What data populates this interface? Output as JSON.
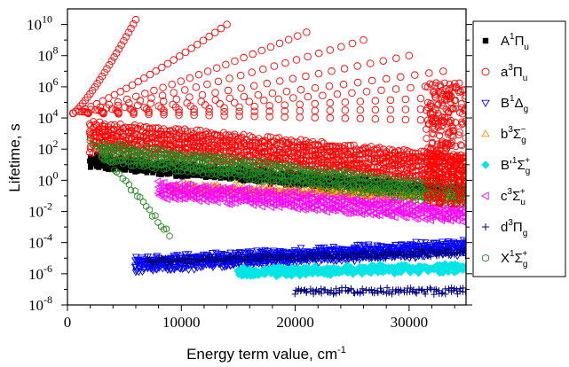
{
  "chart_data": {
    "type": "scatter",
    "xlabel": "Energy term value, cm",
    "xlabel_sup": "-1",
    "ylabel": "Lifetime, s",
    "xlim": [
      0,
      35000
    ],
    "ylim_log10": [
      -8,
      11
    ],
    "y_scale": "log",
    "x_ticks": [
      {
        "value": 0,
        "label": "0"
      },
      {
        "value": 10000,
        "label": "10000"
      },
      {
        "value": 20000,
        "label": "20000"
      },
      {
        "value": 30000,
        "label": "30000"
      }
    ],
    "y_ticks": [
      {
        "exp": 10,
        "base": "10",
        "sup": "10"
      },
      {
        "exp": 8,
        "base": "10",
        "sup": "8"
      },
      {
        "exp": 6,
        "base": "10",
        "sup": "6"
      },
      {
        "exp": 4,
        "base": "10",
        "sup": "4"
      },
      {
        "exp": 2,
        "base": "10",
        "sup": "2"
      },
      {
        "exp": 0,
        "base": "10",
        "sup": "0"
      },
      {
        "exp": -2,
        "base": "10",
        "sup": "-2"
      },
      {
        "exp": -4,
        "base": "10",
        "sup": "-4"
      },
      {
        "exp": -6,
        "base": "10",
        "sup": "-6"
      },
      {
        "exp": -8,
        "base": "10",
        "sup": "-8"
      }
    ],
    "legend_position": "right",
    "series": [
      {
        "key": "A1Pu",
        "label": "A",
        "sup": "1",
        "greek": "Π",
        "sub": "u",
        "marker": "square",
        "color": "#000000",
        "bands": [
          {
            "x0": 2000,
            "x1": 35000,
            "y0": 1.2,
            "y1": -0.9,
            "n": 6,
            "dy": 0.12
          }
        ]
      },
      {
        "key": "a3Pu",
        "label": "a",
        "sup": "3",
        "greek": "Π",
        "sub": "u",
        "marker": "circle",
        "color": "#ff0000",
        "bands": [
          {
            "x0": 2000,
            "x1": 35000,
            "y0": 2.8,
            "y1": 0.6,
            "n": 9,
            "dy": 0.22
          }
        ],
        "fans": [
          {
            "x0": 500,
            "y0": 4.3,
            "x1": 6000,
            "y1": 10.3
          },
          {
            "x0": 500,
            "y0": 4.3,
            "x1": 14000,
            "y1": 10.0
          },
          {
            "x0": 500,
            "y0": 4.3,
            "x1": 21000,
            "y1": 9.5
          },
          {
            "x0": 500,
            "y0": 4.3,
            "x1": 26000,
            "y1": 9.0
          },
          {
            "x0": 500,
            "y0": 4.3,
            "x1": 30000,
            "y1": 8.0
          },
          {
            "x0": 500,
            "y0": 4.3,
            "x1": 33000,
            "y1": 7.0
          },
          {
            "x0": 500,
            "y0": 4.3,
            "x1": 34000,
            "y1": 6.2
          },
          {
            "x0": 500,
            "y0": 4.3,
            "x1": 35000,
            "y1": 5.4
          },
          {
            "x0": 500,
            "y0": 4.3,
            "x1": 35000,
            "y1": 4.6
          },
          {
            "x0": 500,
            "y0": 4.3,
            "x1": 35000,
            "y1": 3.8
          }
        ]
      },
      {
        "key": "B1Dg",
        "label": "B",
        "sup": "1",
        "greek": "Δ",
        "sub": "g",
        "marker": "triangle-down",
        "color": "#0000ff",
        "bands": [
          {
            "x0": 6000,
            "x1": 35000,
            "y0": -5.4,
            "y1": -4.3,
            "n": 7,
            "dy": 0.12
          }
        ]
      },
      {
        "key": "b3Sg",
        "label": "b",
        "sup": "3",
        "greek": "Σ",
        "sub": "g",
        "subsup": "−",
        "marker": "triangle-up",
        "color": "#ff8c00",
        "bands": [
          {
            "x0": 9000,
            "x1": 35000,
            "y0": -0.5,
            "y1": -1.1,
            "n": 3,
            "dy": 0.18
          }
        ]
      },
      {
        "key": "Bp1Sg",
        "label": "B'",
        "sup": "1",
        "greek": "Σ",
        "sub": "g",
        "subsup": "+",
        "marker": "diamond",
        "color": "#00e5e5",
        "bands": [
          {
            "x0": 15000,
            "x1": 35000,
            "y0": -5.9,
            "y1": -5.6,
            "n": 4,
            "dy": 0.1
          }
        ]
      },
      {
        "key": "c3Su",
        "label": "c",
        "sup": "3",
        "greek": "Σ",
        "sub": "u",
        "subsup": "+",
        "marker": "triangle-left",
        "color": "#ff00ff",
        "bands": [
          {
            "x0": 8000,
            "x1": 35000,
            "y0": -0.6,
            "y1": -2.2,
            "n": 5,
            "dy": 0.2
          }
        ]
      },
      {
        "key": "d3Pg",
        "label": "d",
        "sup": "3",
        "greek": "Π",
        "sub": "g",
        "marker": "plus",
        "color": "#000080",
        "bands": [
          {
            "x0": 20000,
            "x1": 35000,
            "y0": -7.1,
            "y1": -7.1,
            "n": 2,
            "dy": 0.1
          },
          {
            "x0": 7000,
            "x1": 35000,
            "y0": -5.2,
            "y1": -4.6,
            "n": 3,
            "dy": 0.1
          }
        ]
      },
      {
        "key": "X1Sg",
        "label": "X",
        "sup": "1",
        "greek": "Σ",
        "sub": "g",
        "subsup": "+",
        "marker": "hexagon",
        "color": "#228b22",
        "bands": [
          {
            "x0": 3000,
            "x1": 35000,
            "y0": 1.8,
            "y1": -1.0,
            "n": 5,
            "dy": 0.25
          },
          {
            "x0": 2000,
            "x1": 9000,
            "y0": 2.6,
            "y1": -3.5,
            "n": 1,
            "dy": 0.2
          }
        ]
      }
    ]
  }
}
